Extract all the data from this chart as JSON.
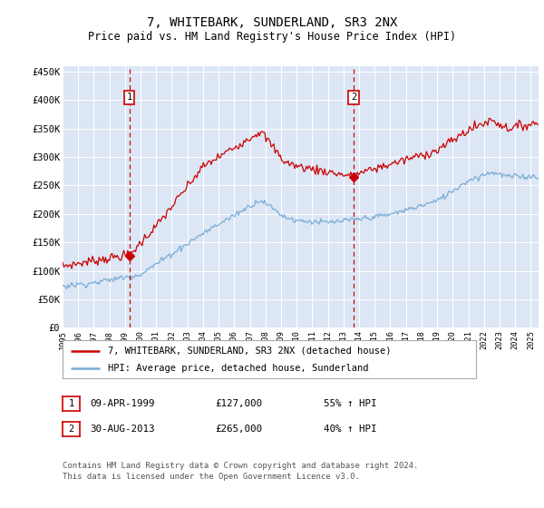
{
  "title": "7, WHITEBARK, SUNDERLAND, SR3 2NX",
  "subtitle": "Price paid vs. HM Land Registry's House Price Index (HPI)",
  "title_fontsize": 10,
  "subtitle_fontsize": 8.5,
  "background_color": "#ffffff",
  "plot_bg_color": "#dce6f5",
  "grid_color": "#ffffff",
  "red_line_color": "#cc0000",
  "blue_line_color": "#7aadd4",
  "ylim": [
    0,
    460000
  ],
  "yticks": [
    0,
    50000,
    100000,
    150000,
    200000,
    250000,
    300000,
    350000,
    400000,
    450000
  ],
  "ytick_labels": [
    "£0",
    "£50K",
    "£100K",
    "£150K",
    "£200K",
    "£250K",
    "£300K",
    "£350K",
    "£400K",
    "£450K"
  ],
  "sale1_date": 1999.27,
  "sale1_price": 127000,
  "sale1_label": "1",
  "sale2_date": 2013.66,
  "sale2_price": 265000,
  "sale2_label": "2",
  "legend_line1": "7, WHITEBARK, SUNDERLAND, SR3 2NX (detached house)",
  "legend_line2": "HPI: Average price, detached house, Sunderland",
  "table_row1_num": "1",
  "table_row1_date": "09-APR-1999",
  "table_row1_price": "£127,000",
  "table_row1_hpi": "55% ↑ HPI",
  "table_row2_num": "2",
  "table_row2_date": "30-AUG-2013",
  "table_row2_price": "£265,000",
  "table_row2_hpi": "40% ↑ HPI",
  "footer": "Contains HM Land Registry data © Crown copyright and database right 2024.\nThis data is licensed under the Open Government Licence v3.0."
}
